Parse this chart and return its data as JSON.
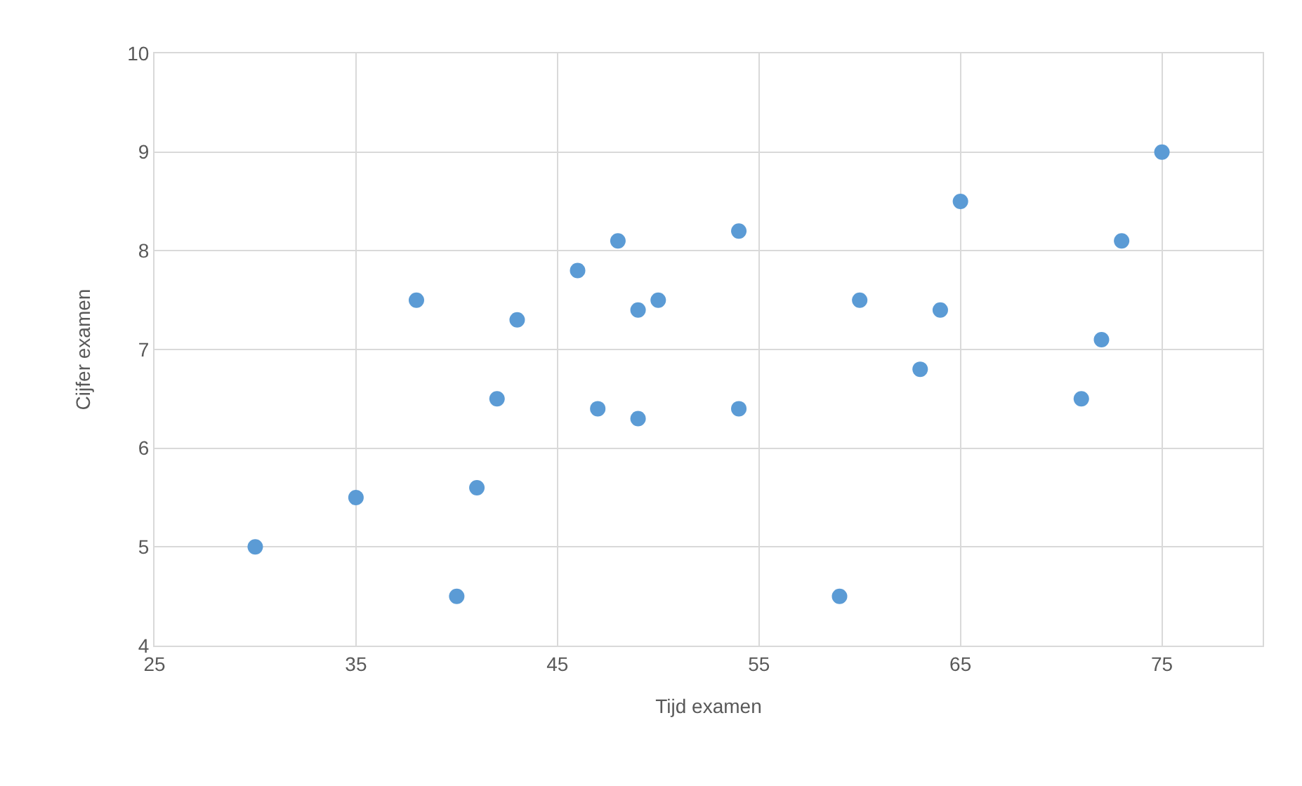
{
  "chart_data": {
    "type": "scatter",
    "xlabel": "Tijd examen",
    "ylabel": "Cijfer examen",
    "x": [
      30,
      35,
      40,
      38,
      41,
      42,
      43,
      46,
      47,
      48,
      49,
      49,
      50,
      54,
      54,
      59,
      60,
      63,
      64,
      65,
      71,
      72,
      73,
      75
    ],
    "values": [
      5.0,
      5.5,
      4.5,
      7.5,
      5.6,
      6.5,
      7.3,
      7.8,
      6.4,
      8.1,
      7.4,
      6.3,
      7.5,
      8.2,
      6.4,
      4.5,
      7.5,
      6.8,
      7.4,
      8.5,
      6.5,
      7.1,
      8.1,
      9.0
    ],
    "color": "#5b9bd5",
    "marker": "circle",
    "grid": true,
    "legend": false,
    "xlim": [
      25,
      80
    ],
    "xticks": [
      25,
      35,
      45,
      55,
      65,
      75
    ],
    "ylim": [
      4,
      10
    ],
    "yticks": [
      4,
      5,
      6,
      7,
      8,
      9,
      10
    ]
  }
}
